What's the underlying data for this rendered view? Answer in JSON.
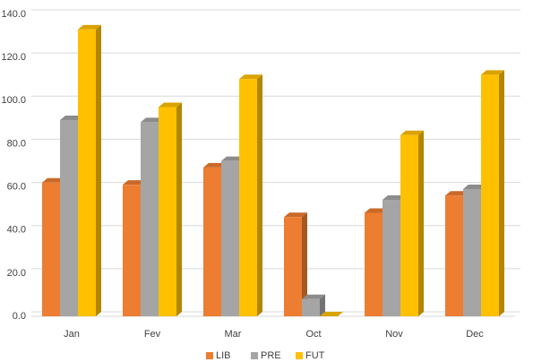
{
  "chart_data": {
    "type": "bar3d",
    "categories": [
      "Jan",
      "Fev",
      "Mar",
      "Oct",
      "Nov",
      "Dec"
    ],
    "series": [
      {
        "name": "LIB",
        "color": "#ed7d31",
        "values": [
          62,
          61,
          69,
          46,
          48,
          56
        ]
      },
      {
        "name": "PRE",
        "color": "#a5a5a5",
        "values": [
          91,
          90,
          72,
          8,
          54,
          59
        ]
      },
      {
        "name": "FUT",
        "color": "#ffc000",
        "values": [
          133,
          97,
          110,
          0,
          84,
          112
        ]
      }
    ],
    "ylim": [
      0,
      140
    ],
    "yticks": [
      {
        "value": 0,
        "label": "0.0"
      },
      {
        "value": 20,
        "label": "20.0"
      },
      {
        "value": 40,
        "label": "40.0"
      },
      {
        "value": 60,
        "label": "60.0"
      },
      {
        "value": 80,
        "label": "80.0"
      },
      {
        "value": 100,
        "label": "100.0"
      },
      {
        "value": 120,
        "label": "120.0"
      },
      {
        "value": 140,
        "label": "140.0"
      }
    ],
    "grid": true,
    "legend": "bottom"
  }
}
